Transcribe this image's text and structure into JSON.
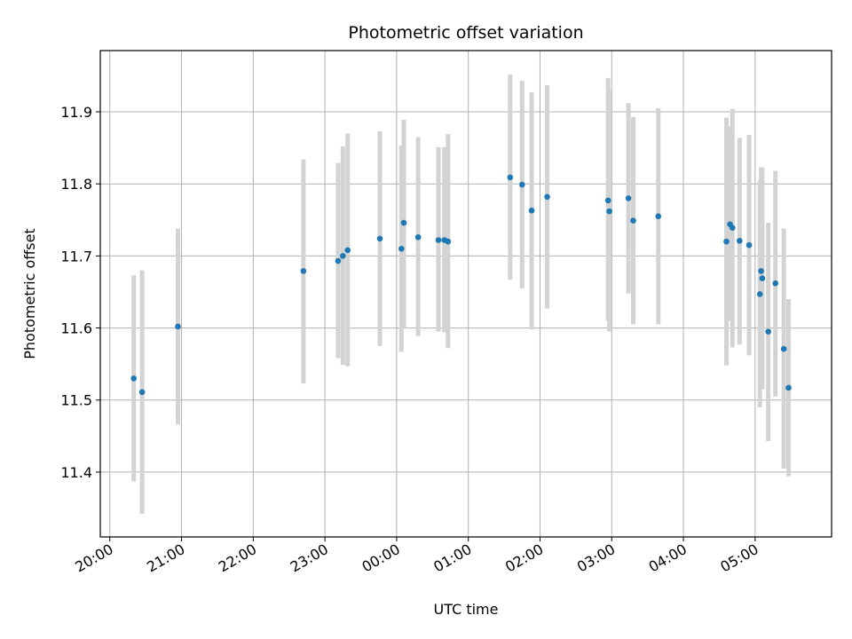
{
  "chart_data": {
    "type": "scatter",
    "title": "Photometric offset variation",
    "xlabel": "UTC time",
    "ylabel": "Photometric offset",
    "xlim": [
      "2000-01-01 19:52",
      "2000-01-02 06:04"
    ],
    "ylim": [
      11.31,
      11.985
    ],
    "grid": true,
    "legend": "none",
    "x_ticks": [
      {
        "time": "2000-01-01 20:00",
        "label": "20:00"
      },
      {
        "time": "2000-01-01 21:00",
        "label": "21:00"
      },
      {
        "time": "2000-01-01 22:00",
        "label": "22:00"
      },
      {
        "time": "2000-01-01 23:00",
        "label": "23:00"
      },
      {
        "time": "2000-01-02 00:00",
        "label": "00:00"
      },
      {
        "time": "2000-01-02 01:00",
        "label": "01:00"
      },
      {
        "time": "2000-01-02 02:00",
        "label": "02:00"
      },
      {
        "time": "2000-01-02 03:00",
        "label": "03:00"
      },
      {
        "time": "2000-01-02 04:00",
        "label": "04:00"
      },
      {
        "time": "2000-01-02 05:00",
        "label": "05:00"
      }
    ],
    "y_ticks": [
      {
        "value": 11.4,
        "label": "11.4"
      },
      {
        "value": 11.5,
        "label": "11.5"
      },
      {
        "value": 11.6,
        "label": "11.6"
      },
      {
        "value": 11.7,
        "label": "11.7"
      },
      {
        "value": 11.8,
        "label": "11.8"
      },
      {
        "value": 11.9,
        "label": "11.9"
      }
    ],
    "colors": {
      "point": "#1f77b4",
      "errorbar": "#d3d3d3",
      "grid": "#b0b0b0"
    },
    "points": [
      {
        "x": "2000-01-01 20:20",
        "y": 11.53,
        "ymin": 11.387,
        "ymax": 11.673
      },
      {
        "x": "2000-01-01 20:27",
        "y": 11.511,
        "ymin": 11.342,
        "ymax": 11.68
      },
      {
        "x": "2000-01-01 20:57",
        "y": 11.602,
        "ymin": 11.466,
        "ymax": 11.738
      },
      {
        "x": "2000-01-01 22:42",
        "y": 11.679,
        "ymin": 11.523,
        "ymax": 11.834
      },
      {
        "x": "2000-01-01 23:11",
        "y": 11.693,
        "ymin": 11.558,
        "ymax": 11.829
      },
      {
        "x": "2000-01-01 23:15",
        "y": 11.7,
        "ymin": 11.549,
        "ymax": 11.852
      },
      {
        "x": "2000-01-01 23:19",
        "y": 11.708,
        "ymin": 11.547,
        "ymax": 11.87
      },
      {
        "x": "2000-01-01 23:46",
        "y": 11.724,
        "ymin": 11.575,
        "ymax": 11.873
      },
      {
        "x": "2000-01-02 00:04",
        "y": 11.71,
        "ymin": 11.567,
        "ymax": 11.853
      },
      {
        "x": "2000-01-02 00:06",
        "y": 11.746,
        "ymin": 11.6,
        "ymax": 11.889
      },
      {
        "x": "2000-01-02 00:18",
        "y": 11.726,
        "ymin": 11.589,
        "ymax": 11.865
      },
      {
        "x": "2000-01-02 00:35",
        "y": 11.722,
        "ymin": 11.595,
        "ymax": 11.851
      },
      {
        "x": "2000-01-02 00:40",
        "y": 11.722,
        "ymin": 11.594,
        "ymax": 11.851
      },
      {
        "x": "2000-01-02 00:43",
        "y": 11.72,
        "ymin": 11.572,
        "ymax": 11.869
      },
      {
        "x": "2000-01-02 01:35",
        "y": 11.809,
        "ymin": 11.667,
        "ymax": 11.952
      },
      {
        "x": "2000-01-02 01:45",
        "y": 11.799,
        "ymin": 11.655,
        "ymax": 11.943
      },
      {
        "x": "2000-01-02 01:53",
        "y": 11.763,
        "ymin": 11.598,
        "ymax": 11.927
      },
      {
        "x": "2000-01-02 02:06",
        "y": 11.782,
        "ymin": 11.627,
        "ymax": 11.937
      },
      {
        "x": "2000-01-02 02:57",
        "y": 11.777,
        "ymin": 11.61,
        "ymax": 11.947
      },
      {
        "x": "2000-01-02 02:58",
        "y": 11.762,
        "ymin": 11.595,
        "ymax": 11.93
      },
      {
        "x": "2000-01-02 03:14",
        "y": 11.78,
        "ymin": 11.648,
        "ymax": 11.912
      },
      {
        "x": "2000-01-02 03:18",
        "y": 11.749,
        "ymin": 11.605,
        "ymax": 11.893
      },
      {
        "x": "2000-01-02 03:39",
        "y": 11.755,
        "ymin": 11.605,
        "ymax": 11.905
      },
      {
        "x": "2000-01-02 04:36",
        "y": 11.72,
        "ymin": 11.548,
        "ymax": 11.892
      },
      {
        "x": "2000-01-02 04:39",
        "y": 11.744,
        "ymin": 11.61,
        "ymax": 11.88
      },
      {
        "x": "2000-01-02 04:41",
        "y": 11.739,
        "ymin": 11.573,
        "ymax": 11.904
      },
      {
        "x": "2000-01-02 04:47",
        "y": 11.721,
        "ymin": 11.577,
        "ymax": 11.864
      },
      {
        "x": "2000-01-02 04:55",
        "y": 11.715,
        "ymin": 11.562,
        "ymax": 11.868
      },
      {
        "x": "2000-01-02 05:04",
        "y": 11.647,
        "ymin": 11.49,
        "ymax": 11.805
      },
      {
        "x": "2000-01-02 05:05",
        "y": 11.679,
        "ymin": 11.536,
        "ymax": 11.823
      },
      {
        "x": "2000-01-02 05:06",
        "y": 11.669,
        "ymin": 11.515,
        "ymax": 11.823
      },
      {
        "x": "2000-01-02 05:11",
        "y": 11.595,
        "ymin": 11.443,
        "ymax": 11.746
      },
      {
        "x": "2000-01-02 05:17",
        "y": 11.662,
        "ymin": 11.505,
        "ymax": 11.818
      },
      {
        "x": "2000-01-02 05:24",
        "y": 11.571,
        "ymin": 11.405,
        "ymax": 11.738
      },
      {
        "x": "2000-01-02 05:28",
        "y": 11.517,
        "ymin": 11.394,
        "ymax": 11.64
      }
    ]
  }
}
